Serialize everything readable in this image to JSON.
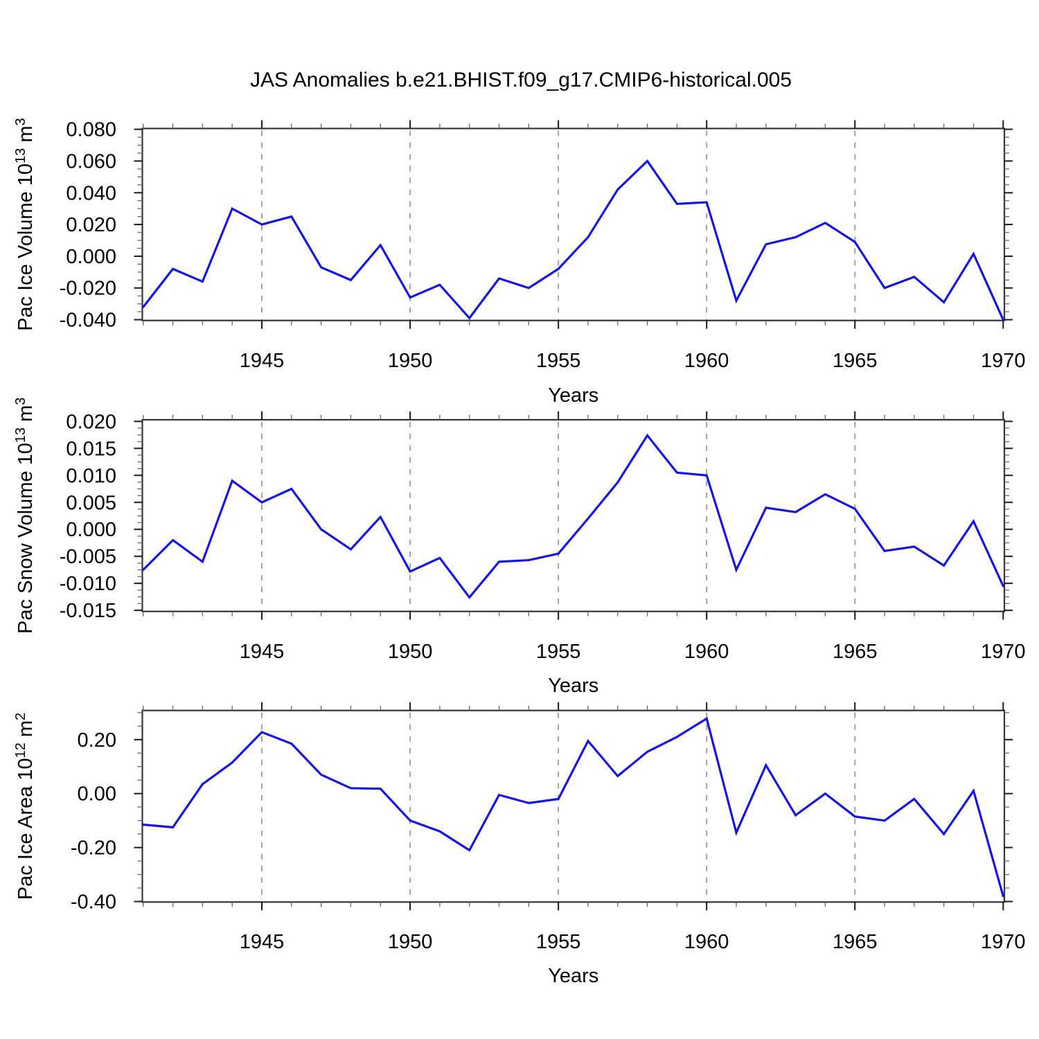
{
  "title": "JAS Anomalies b.e21.BHIST.f09_g17.CMIP6-historical.005",
  "colors": {
    "line": "#1414e6",
    "grid": "#9a9a9a",
    "axis": "#333333",
    "tick_major": "#1a1a1a",
    "tick_minor": "#666666",
    "text": "#000000",
    "background": "#ffffff"
  },
  "chart_data": [
    {
      "type": "line",
      "panel": "top",
      "ylabel_plain": "Pac Ice Volume 10^13 m^3",
      "ylabel_parts": [
        {
          "t": "Pac Ice Volume 10"
        },
        {
          "t": "13",
          "sup": true
        },
        {
          "t": " m"
        },
        {
          "t": "3",
          "sup": true
        }
      ],
      "xlabel": "Years",
      "x": [
        1941,
        1942,
        1943,
        1944,
        1945,
        1946,
        1947,
        1948,
        1949,
        1950,
        1951,
        1952,
        1953,
        1954,
        1955,
        1956,
        1957,
        1958,
        1959,
        1960,
        1961,
        1962,
        1963,
        1964,
        1965,
        1966,
        1967,
        1968,
        1969,
        1970
      ],
      "values": [
        -0.032,
        -0.008,
        -0.016,
        0.03,
        0.02,
        0.025,
        -0.007,
        -0.015,
        0.007,
        -0.026,
        -0.018,
        -0.039,
        -0.014,
        -0.02,
        -0.008,
        0.012,
        0.042,
        0.06,
        0.033,
        0.034,
        -0.028,
        0.0075,
        0.012,
        0.021,
        0.009,
        -0.02,
        -0.013,
        -0.029,
        0.0015,
        -0.04
      ],
      "xlim": [
        1940.97,
        1970.04
      ],
      "ylim": [
        -0.0405,
        0.0805
      ],
      "xticks": {
        "major": [
          1945,
          1950,
          1955,
          1960,
          1965,
          1970
        ],
        "labels": [
          "1945",
          "1950",
          "1955",
          "1960",
          "1965",
          "1970"
        ],
        "minor_step": 1
      },
      "yticks": {
        "major": [
          0.08,
          0.06,
          0.04,
          0.02,
          0.0,
          -0.02,
          -0.04
        ],
        "labels": [
          "0.080",
          "0.060",
          "0.040",
          "0.020",
          "0.000",
          "-0.020",
          "-0.040"
        ],
        "minor_step": 0.005
      },
      "grid_x": [
        1945,
        1950,
        1955,
        1960,
        1965
      ],
      "grid_style": "vertical-dashed",
      "legend": null
    },
    {
      "type": "line",
      "panel": "middle",
      "ylabel_plain": "Pac Snow Volume 10^13 m^3",
      "ylabel_parts": [
        {
          "t": "Pac Snow Volume 10"
        },
        {
          "t": "13",
          "sup": true
        },
        {
          "t": " m"
        },
        {
          "t": "3",
          "sup": true
        }
      ],
      "xlabel": "Years",
      "x": [
        1941,
        1942,
        1943,
        1944,
        1945,
        1946,
        1947,
        1948,
        1949,
        1950,
        1951,
        1952,
        1953,
        1954,
        1955,
        1956,
        1957,
        1958,
        1959,
        1960,
        1961,
        1962,
        1963,
        1964,
        1965,
        1966,
        1967,
        1968,
        1969,
        1970
      ],
      "values": [
        -0.0075,
        -0.002,
        -0.006,
        0.009,
        0.005,
        0.0075,
        0.0,
        -0.0037,
        0.0023,
        -0.0078,
        -0.0053,
        -0.0126,
        -0.006,
        -0.0057,
        -0.0045,
        0.002,
        0.0087,
        0.0174,
        0.0105,
        0.01,
        -0.0075,
        0.004,
        0.0032,
        0.0065,
        0.0038,
        -0.004,
        -0.0032,
        -0.0067,
        0.0015,
        -0.0105
      ],
      "xlim": [
        1940.97,
        1970.04
      ],
      "ylim": [
        -0.0152,
        0.0203
      ],
      "xticks": {
        "major": [
          1945,
          1950,
          1955,
          1960,
          1965,
          1970
        ],
        "labels": [
          "1945",
          "1950",
          "1955",
          "1960",
          "1965",
          "1970"
        ],
        "minor_step": 1
      },
      "yticks": {
        "major": [
          0.02,
          0.015,
          0.01,
          0.005,
          0.0,
          -0.005,
          -0.01,
          -0.015
        ],
        "labels": [
          "0.020",
          "0.015",
          "0.010",
          "0.005",
          "0.000",
          "-0.005",
          "-0.010",
          "-0.015"
        ],
        "minor_step": 0.00125
      },
      "grid_x": [
        1945,
        1950,
        1955,
        1960,
        1965
      ],
      "grid_style": "vertical-dashed",
      "legend": null
    },
    {
      "type": "line",
      "panel": "bottom",
      "ylabel_plain": "Pac Ice Area 10^12 m^2",
      "ylabel_parts": [
        {
          "t": "Pac Ice Area 10"
        },
        {
          "t": "12",
          "sup": true
        },
        {
          "t": " m"
        },
        {
          "t": "2",
          "sup": true
        }
      ],
      "xlabel": "Years",
      "x": [
        1941,
        1942,
        1943,
        1944,
        1945,
        1946,
        1947,
        1948,
        1949,
        1950,
        1951,
        1952,
        1953,
        1954,
        1955,
        1956,
        1957,
        1958,
        1959,
        1960,
        1961,
        1962,
        1963,
        1964,
        1965,
        1966,
        1967,
        1968,
        1969,
        1970
      ],
      "values": [
        -0.115,
        -0.125,
        0.035,
        0.115,
        0.2275,
        0.185,
        0.07,
        0.02,
        0.018,
        -0.1,
        -0.14,
        -0.21,
        -0.005,
        -0.035,
        -0.02,
        0.195,
        0.065,
        0.155,
        0.21,
        0.278,
        -0.145,
        0.105,
        -0.08,
        0.0,
        -0.085,
        -0.1,
        -0.02,
        -0.15,
        0.01,
        -0.38
      ],
      "xlim": [
        1940.97,
        1970.04
      ],
      "ylim": [
        -0.402,
        0.308
      ],
      "xticks": {
        "major": [
          1945,
          1950,
          1955,
          1960,
          1965,
          1970
        ],
        "labels": [
          "1945",
          "1950",
          "1955",
          "1960",
          "1965",
          "1970"
        ],
        "minor_step": 1
      },
      "yticks": {
        "major": [
          0.2,
          0.0,
          -0.2,
          -0.4
        ],
        "labels": [
          "0.20",
          "0.00",
          "-0.20",
          "-0.40"
        ],
        "minor_step": 0.05
      },
      "grid_x": [
        1945,
        1950,
        1955,
        1960,
        1965
      ],
      "grid_style": "vertical-dashed",
      "legend": null
    }
  ]
}
